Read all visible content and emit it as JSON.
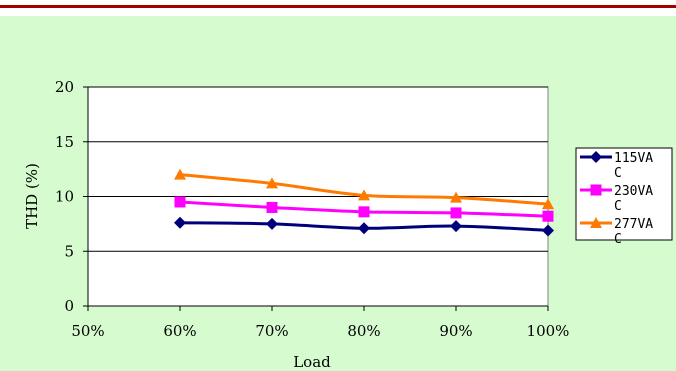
{
  "colors": {
    "background": "#d5fbcf",
    "plot_area": "#ffffff",
    "top_rule": "#a40000"
  },
  "chart_data": {
    "type": "line",
    "title": "",
    "xlabel": "Load",
    "ylabel": "THD (%)",
    "categories": [
      "50%",
      "60%",
      "70%",
      "80%",
      "90%",
      "100%"
    ],
    "y_ticks": [
      "0",
      "5",
      "10",
      "15",
      "20"
    ],
    "ylim": [
      0,
      20
    ],
    "grid": "horizontal",
    "legend_position": "right",
    "series": [
      {
        "name": "115VAC",
        "legend_lines": [
          "115VA",
          "C"
        ],
        "color": "#00007a",
        "marker": "diamond",
        "x": [
          "60%",
          "70%",
          "80%",
          "90%",
          "100%"
        ],
        "values": [
          7.6,
          7.5,
          7.1,
          7.3,
          6.9
        ]
      },
      {
        "name": "230VAC",
        "legend_lines": [
          "230VA",
          "C"
        ],
        "color": "#ff00ff",
        "marker": "square",
        "x": [
          "60%",
          "70%",
          "80%",
          "90%",
          "100%"
        ],
        "values": [
          9.5,
          9.0,
          8.6,
          8.5,
          8.2
        ]
      },
      {
        "name": "277VAC",
        "legend_lines": [
          "277VA",
          "C"
        ],
        "color": "#ff7a00",
        "marker": "triangle",
        "x": [
          "60%",
          "70%",
          "80%",
          "90%",
          "100%"
        ],
        "values": [
          12.0,
          11.2,
          10.1,
          9.9,
          9.3
        ]
      }
    ]
  }
}
